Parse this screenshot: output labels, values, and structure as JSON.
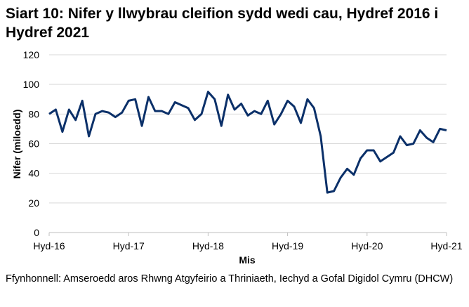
{
  "chart_data": {
    "type": "line",
    "title": "Siart 10: Nifer y llwybrau cleifion sydd wedi cau, Hydref 2016 i Hydref 2021",
    "xlabel": "Mis",
    "ylabel": "Nifer (miloedd)",
    "ylim": [
      0,
      120
    ],
    "yticks": [
      0,
      20,
      40,
      60,
      80,
      100,
      120
    ],
    "xtick_labels": [
      "Hyd-16",
      "Hyd-17",
      "Hyd-18",
      "Hyd-19",
      "Hyd-20",
      "Hyd-21"
    ],
    "grid": "horizontal",
    "line_color": "#0b3069",
    "series": [
      {
        "values": [
          80,
          83,
          68,
          83,
          76,
          89,
          65,
          80,
          82,
          81,
          78,
          81,
          89,
          90,
          72,
          91.5,
          82,
          82,
          80,
          88,
          86,
          84,
          76,
          80,
          95,
          90,
          72,
          93,
          83,
          87,
          79,
          82,
          80,
          89,
          73,
          80,
          89,
          85,
          74,
          90,
          84,
          65,
          27,
          28,
          37,
          43,
          39,
          50,
          55.5,
          55.5,
          48,
          51,
          54,
          65,
          59,
          60,
          69,
          64,
          61,
          70,
          69
        ]
      }
    ]
  },
  "source": "Ffynhonnell: Amseroedd aros Rhwng Atgyfeirio a Thriniaeth, Iechyd a Gofal Digidol Cymru (DHCW)"
}
